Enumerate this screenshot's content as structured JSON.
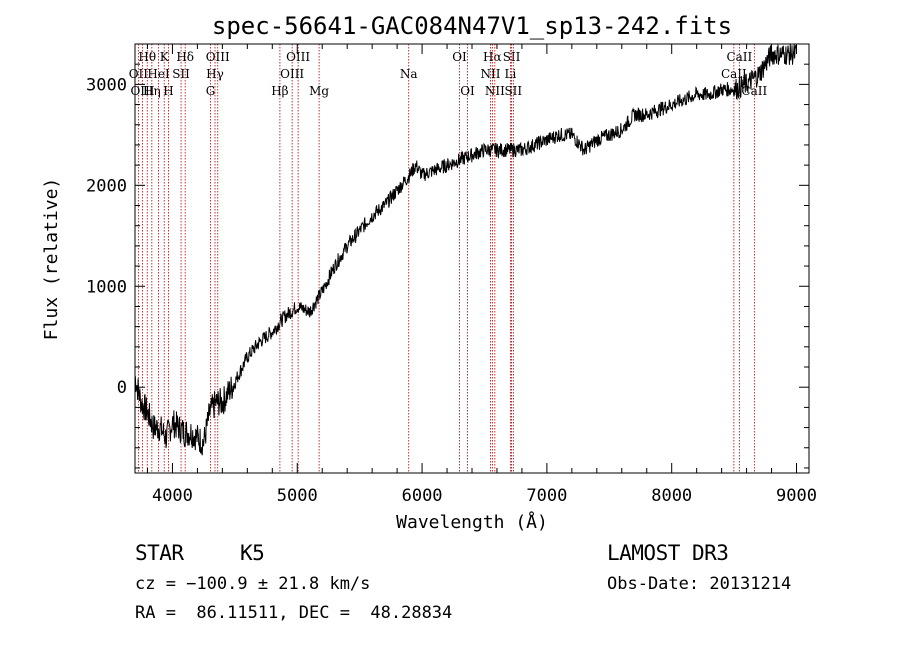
{
  "chart_data": {
    "type": "line",
    "title": "spec-56641-GAC084N47V1_sp13-242.fits",
    "xlabel": "Wavelength (Å)",
    "ylabel": "Flux (relative)",
    "xlim": [
      3700,
      9100
    ],
    "ylim": [
      -850,
      3400
    ],
    "x_ticks": [
      4000,
      5000,
      6000,
      7000,
      8000,
      9000
    ],
    "y_ticks": [
      0,
      1000,
      2000,
      3000
    ],
    "grid": false,
    "series": [
      {
        "name": "flux",
        "color": "#000000",
        "x": [
          3700,
          3750,
          3800,
          3850,
          3900,
          3950,
          4000,
          4050,
          4100,
          4150,
          4200,
          4250,
          4300,
          4350,
          4400,
          4450,
          4500,
          4600,
          4700,
          4800,
          4900,
          5000,
          5100,
          5200,
          5300,
          5400,
          5500,
          5600,
          5700,
          5800,
          5900,
          5950,
          6000,
          6100,
          6200,
          6300,
          6400,
          6500,
          6600,
          6700,
          6800,
          6900,
          7000,
          7100,
          7200,
          7300,
          7400,
          7500,
          7600,
          7700,
          7800,
          7900,
          8000,
          8100,
          8200,
          8300,
          8400,
          8500,
          8600,
          8700,
          8750,
          8800,
          8850,
          8900,
          8950,
          9000
        ],
        "y": [
          100,
          -150,
          -250,
          -400,
          -400,
          -500,
          -350,
          -400,
          -450,
          -450,
          -500,
          -550,
          -250,
          -150,
          -150,
          -50,
          50,
          300,
          450,
          550,
          700,
          800,
          750,
          950,
          1200,
          1400,
          1550,
          1700,
          1800,
          1950,
          2100,
          2200,
          2100,
          2150,
          2200,
          2250,
          2300,
          2350,
          2350,
          2350,
          2350,
          2400,
          2450,
          2500,
          2500,
          2350,
          2450,
          2500,
          2550,
          2700,
          2700,
          2750,
          2800,
          2850,
          2900,
          2900,
          2950,
          2950,
          3000,
          3100,
          3200,
          3300,
          3300,
          3300,
          3300,
          3300
        ]
      }
    ],
    "spectral_lines": [
      {
        "label": "Hθ",
        "x": 3798,
        "row": 0
      },
      {
        "label": "OII",
        "x": 3727,
        "row": 1
      },
      {
        "label": "OIII",
        "x": 3760,
        "row": 2
      },
      {
        "label": "Hη",
        "x": 3835,
        "row": 2
      },
      {
        "label": "HeI",
        "x": 3889,
        "row": 1
      },
      {
        "label": "K",
        "x": 3934,
        "row": 0
      },
      {
        "label": "H",
        "x": 3968,
        "row": 2
      },
      {
        "label": "SII",
        "x": 4069,
        "row": 1
      },
      {
        "label": "Hδ",
        "x": 4102,
        "row": 0
      },
      {
        "label": "OIII",
        "x": 4363,
        "row": 0
      },
      {
        "label": "Hγ",
        "x": 4341,
        "row": 1
      },
      {
        "label": "G",
        "x": 4305,
        "row": 2
      },
      {
        "label": "OIII",
        "x": 5007,
        "row": 0
      },
      {
        "label": "OIII",
        "x": 4959,
        "row": 1
      },
      {
        "label": "Hβ",
        "x": 4861,
        "row": 2
      },
      {
        "label": "Mg",
        "x": 5175,
        "row": 2
      },
      {
        "label": "Na",
        "x": 5893,
        "row": 1
      },
      {
        "label": "OI",
        "x": 6300,
        "row": 0
      },
      {
        "label": "OI",
        "x": 6364,
        "row": 2
      },
      {
        "label": "Hα",
        "x": 6563,
        "row": 0
      },
      {
        "label": "NII",
        "x": 6548,
        "row": 1
      },
      {
        "label": "NII",
        "x": 6583,
        "row": 2
      },
      {
        "label": "SII",
        "x": 6717,
        "row": 0
      },
      {
        "label": "Li",
        "x": 6708,
        "row": 1
      },
      {
        "label": "SII",
        "x": 6731,
        "row": 2
      },
      {
        "label": "CaII",
        "x": 8498,
        "row": 1
      },
      {
        "label": "CaII",
        "x": 8542,
        "row": 0
      },
      {
        "label": "CaII",
        "x": 8662,
        "row": 2
      }
    ]
  },
  "info": {
    "object_class": "STAR",
    "subclass": "K5",
    "survey": "LAMOST DR3",
    "cz": "cz = −100.9 ± 21.8 km/s",
    "obs_date": "Obs-Date: 20131214",
    "coords": "RA =  86.11511, DEC =  48.28834"
  }
}
